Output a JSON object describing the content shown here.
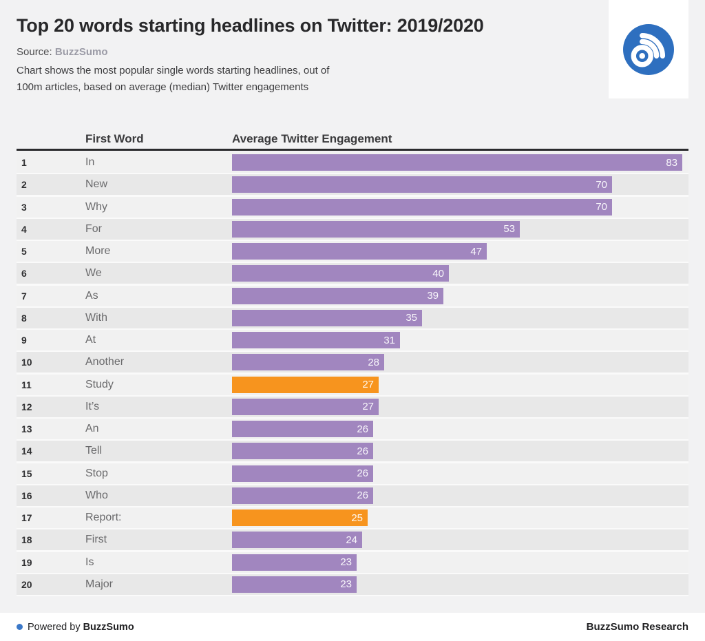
{
  "header": {
    "title": "Top 20 words starting headlines on Twitter: 2019/2020",
    "source_label": "Source:",
    "source_value": "BuzzSumo",
    "description_line1": "Chart shows the most popular single words starting headlines, out of",
    "description_line2": "100m articles, based on average (median) Twitter engagements"
  },
  "logo": {
    "icon": "buzzsumo-rss-logo",
    "circle_color": "#2e6fbf"
  },
  "table": {
    "columns": {
      "first_word": "First Word",
      "engagement": "Average Twitter Engagement"
    },
    "rows": [
      {
        "rank": "1",
        "word": "In",
        "value": 83,
        "highlight": false
      },
      {
        "rank": "2",
        "word": "New",
        "value": 70,
        "highlight": false
      },
      {
        "rank": "3",
        "word": "Why",
        "value": 70,
        "highlight": false
      },
      {
        "rank": "4",
        "word": "For",
        "value": 53,
        "highlight": false
      },
      {
        "rank": "5",
        "word": "More",
        "value": 47,
        "highlight": false
      },
      {
        "rank": "6",
        "word": "We",
        "value": 40,
        "highlight": false
      },
      {
        "rank": "7",
        "word": "As",
        "value": 39,
        "highlight": false
      },
      {
        "rank": "8",
        "word": "With",
        "value": 35,
        "highlight": false
      },
      {
        "rank": "9",
        "word": "At",
        "value": 31,
        "highlight": false
      },
      {
        "rank": "10",
        "word": "Another",
        "value": 28,
        "highlight": false
      },
      {
        "rank": "11",
        "word": "Study",
        "value": 27,
        "highlight": true
      },
      {
        "rank": "12",
        "word": "It’s",
        "value": 27,
        "highlight": false
      },
      {
        "rank": "13",
        "word": "An",
        "value": 26,
        "highlight": false
      },
      {
        "rank": "14",
        "word": "Tell",
        "value": 26,
        "highlight": false
      },
      {
        "rank": "15",
        "word": "Stop",
        "value": 26,
        "highlight": false
      },
      {
        "rank": "16",
        "word": "Who",
        "value": 26,
        "highlight": false
      },
      {
        "rank": "17",
        "word": "Report:",
        "value": 25,
        "highlight": true
      },
      {
        "rank": "18",
        "word": "First",
        "value": 24,
        "highlight": false
      },
      {
        "rank": "19",
        "word": "Is",
        "value": 23,
        "highlight": false
      },
      {
        "rank": "20",
        "word": "Major",
        "value": 23,
        "highlight": false
      }
    ]
  },
  "colors": {
    "bar_purple": "#a186bf",
    "bar_orange": "#f7941e",
    "logo_blue": "#2e6fbf",
    "footer_dot_blue": "#3b78c8"
  },
  "footer": {
    "powered_prefix": "Powered by",
    "powered_brand": "BuzzSumo",
    "research": "BuzzSumo Research"
  },
  "chart_data": {
    "type": "bar",
    "orientation": "horizontal",
    "title": "Top 20 words starting headlines on Twitter: 2019/2020",
    "categories": [
      "In",
      "New",
      "Why",
      "For",
      "More",
      "We",
      "As",
      "With",
      "At",
      "Another",
      "Study",
      "It’s",
      "An",
      "Tell",
      "Stop",
      "Who",
      "Report:",
      "First",
      "Is",
      "Major"
    ],
    "values": [
      83,
      70,
      70,
      53,
      47,
      40,
      39,
      35,
      31,
      28,
      27,
      27,
      26,
      26,
      26,
      26,
      25,
      24,
      23,
      23
    ],
    "highlighted_categories": [
      "Study",
      "Report:"
    ],
    "series_colors": {
      "default": "#a186bf",
      "highlight": "#f7941e"
    },
    "xlabel": "Average Twitter Engagement",
    "xlim": [
      0,
      84.2
    ],
    "grid": false,
    "legend": false,
    "value_labels": "inside-end",
    "source": "BuzzSumo"
  }
}
